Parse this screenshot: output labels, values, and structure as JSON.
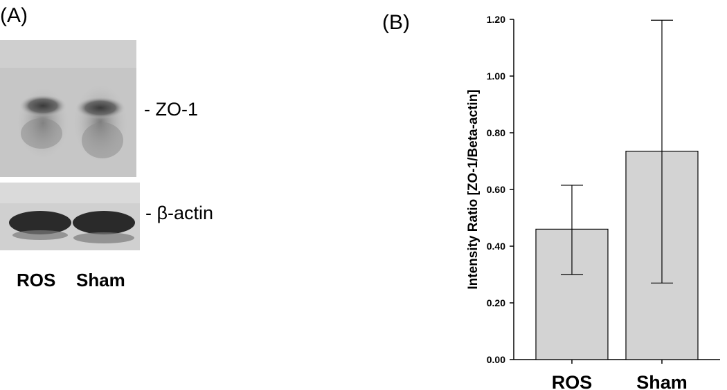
{
  "panel_a": {
    "label": "(A)",
    "band_labels": {
      "zo1": "- ZO-1",
      "actin": "- β-actin"
    },
    "lanes": [
      "ROS",
      "Sham"
    ]
  },
  "panel_b": {
    "label": "(B)"
  },
  "chart_data": {
    "type": "bar",
    "categories": [
      "ROS",
      "Sham"
    ],
    "values": [
      0.46,
      0.735
    ],
    "error_low": [
      0.3,
      0.27
    ],
    "error_high": [
      0.615,
      1.197
    ],
    "ylabel": "Intensity Ratio [ZO-1/Beta-actin]",
    "xlabel": "",
    "ylim": [
      0,
      1.2
    ],
    "yticks": [
      "0.00",
      "0.20",
      "0.40",
      "0.60",
      "0.80",
      "1.00",
      "1.20"
    ],
    "ytick_values": [
      0,
      0.2,
      0.4,
      0.6,
      0.8,
      1.0,
      1.2
    ],
    "grid": false,
    "bar_color": "#d3d3d3"
  }
}
